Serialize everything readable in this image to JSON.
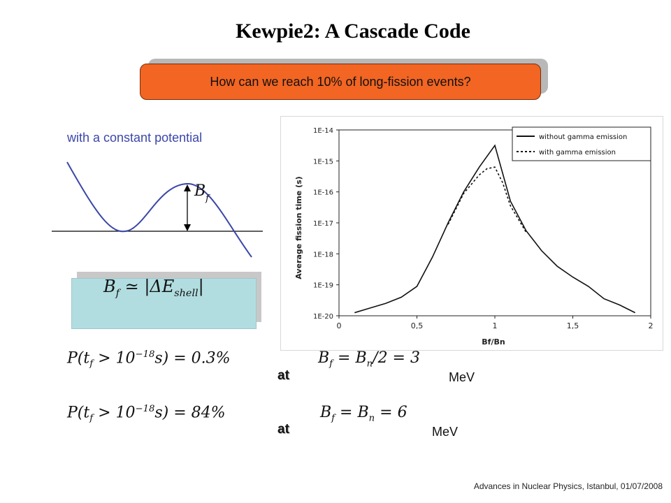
{
  "title": "Kewpie2:  A Cascade Code",
  "question": "How can we reach 10% of long-fission events?",
  "potential": {
    "caption": "with a constant potential",
    "barrier_label": "B_f"
  },
  "formula": "B_f ≃ |ΔE_shell|",
  "probabilities": [
    {
      "text": "P(t_f > 10^−18 s) = 0.3%",
      "at": "at",
      "condition": "B_f = B_n/2 = 3",
      "unit": "MeV"
    },
    {
      "text": "P(t_f > 10^−18 s) = 84%",
      "at": "at",
      "condition": "B_f = B_n = 6",
      "unit": "MeV"
    }
  ],
  "footer": "Advances in Nuclear Physics, Istanbul, 01/07/2008",
  "colors": {
    "accent": "#f26522",
    "formula_bg": "#b2dde0",
    "curve": "#3b47a8"
  },
  "chart_data": {
    "type": "line",
    "xlabel": "Bf/Bn",
    "ylabel": "Average fission time (s)",
    "xlim": [
      0,
      2
    ],
    "ylim": [
      "1E-20",
      "1E-14"
    ],
    "yscale": "log",
    "x_ticks": [
      "0",
      "0,5",
      "1",
      "1,5",
      "2"
    ],
    "y_ticks": [
      "1E-14",
      "1E-15",
      "1E-16",
      "1E-17",
      "1E-18",
      "1E-19",
      "1E-20"
    ],
    "legend_position": "top-right",
    "series": [
      {
        "name": "without gamma emission",
        "style": "solid",
        "x": [
          0.1,
          0.2,
          0.3,
          0.4,
          0.5,
          0.6,
          0.7,
          0.8,
          0.9,
          1.0,
          1.1,
          1.2,
          1.3,
          1.4,
          1.5,
          1.6,
          1.7,
          1.8,
          1.9
        ],
        "y_exp": [
          -19.9,
          -19.75,
          -19.6,
          -19.4,
          -19.05,
          -18.1,
          -17.0,
          -16.0,
          -15.2,
          -14.5,
          -16.3,
          -17.25,
          -17.9,
          -18.4,
          -18.75,
          -19.05,
          -19.45,
          -19.65,
          -19.9
        ]
      },
      {
        "name": "with gamma emission",
        "style": "dotted",
        "x": [
          0.7,
          0.8,
          0.9,
          0.95,
          1.0,
          1.05,
          1.1,
          1.2
        ],
        "y_exp": [
          -17.05,
          -16.05,
          -15.45,
          -15.25,
          -15.2,
          -15.7,
          -16.45,
          -17.3
        ]
      }
    ]
  }
}
